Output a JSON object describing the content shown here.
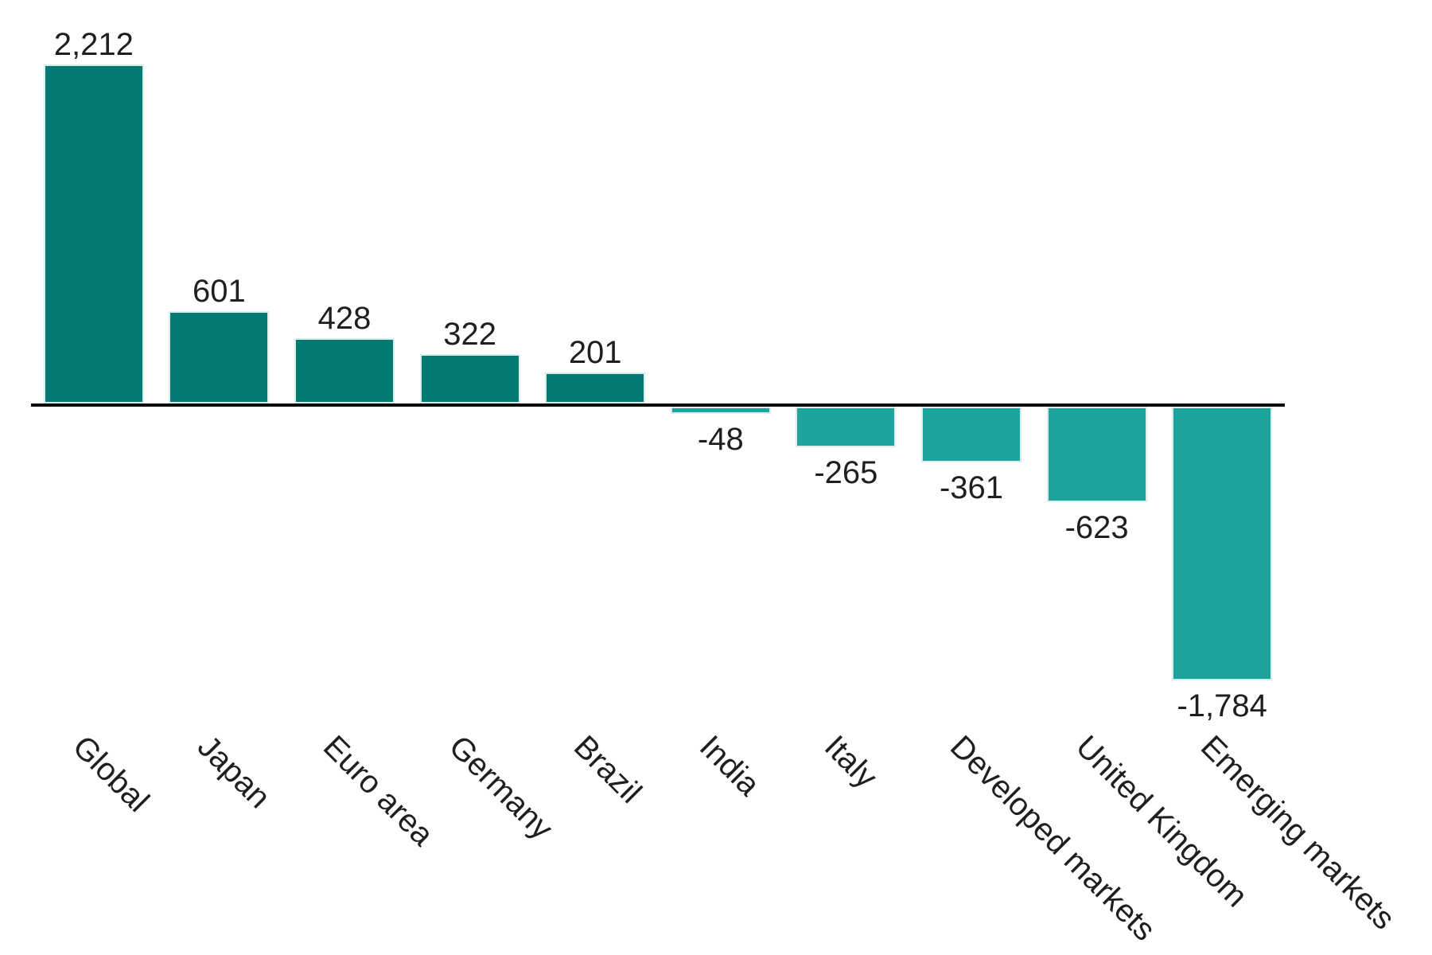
{
  "chart_data": {
    "type": "bar",
    "categories": [
      "Global",
      "Japan",
      "Euro area",
      "Germany",
      "Brazil",
      "India",
      "Italy",
      "Developed markets",
      "United Kingdom",
      "Emerging markets"
    ],
    "values": [
      2212,
      601,
      428,
      322,
      201,
      -48,
      -265,
      -361,
      -623,
      -1784
    ],
    "value_labels": [
      "2,212",
      "601",
      "428",
      "322",
      "201",
      "-48",
      "-265",
      "-361",
      "-623",
      "-1,784"
    ],
    "title": "",
    "xlabel": "",
    "ylabel": "",
    "ylim": [
      -1784,
      2212
    ],
    "grid": false,
    "legend": null,
    "x_tick_rotation_deg": 45,
    "colors": {
      "positive_bar": "#007a73",
      "negative_bar": "#1fa49d",
      "bar_border": "#d8edec",
      "axis_line": "#0a0a0a",
      "text": "#1f1f1f",
      "background": "#ffffff"
    }
  }
}
